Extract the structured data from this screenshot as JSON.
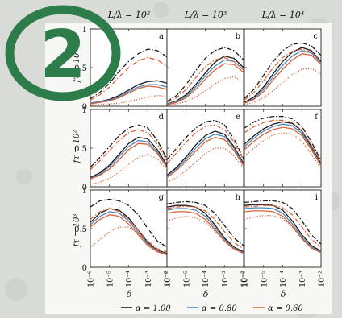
{
  "badge": {
    "number": "2",
    "color": "#2d7d4a"
  },
  "chart_data": {
    "type": "line",
    "panel_grid": {
      "column_titles": [
        "L/λ = 10²",
        "L/λ = 10³",
        "L/λ = 10⁴"
      ],
      "row_labels": [
        "fτ = 10",
        "fτ = 10²",
        "fτ = 10³"
      ],
      "panel_letters": [
        "a",
        "b",
        "c",
        "d",
        "e",
        "f",
        "g",
        "h",
        "i"
      ]
    },
    "xlabel": "δ",
    "x_scale": "log",
    "xlim": [
      1e-06,
      0.01
    ],
    "x_tick_labels": [
      "10⁻⁶",
      "10⁻⁵",
      "10⁻⁴",
      "10⁻³",
      "10⁻²"
    ],
    "ylim": [
      0,
      1
    ],
    "y_tick_labels": [
      "0",
      "0.5",
      "1"
    ],
    "legend": {
      "placement": "bottom",
      "entries": [
        {
          "label": "α = 1.00",
          "color": "#1a1a1a"
        },
        {
          "label": "α = 0.80",
          "color": "#4a86b8"
        },
        {
          "label": "α = 0.60",
          "color": "#d9633a"
        }
      ]
    },
    "line_styles": [
      "solid",
      "dashdot",
      "dotted"
    ],
    "x": [
      -6,
      -5.5,
      -5,
      -4.5,
      -4,
      -3.5,
      -3,
      -2.5,
      -2
    ],
    "panels": [
      {
        "id": "a",
        "series": [
          {
            "color": "#1a1a1a",
            "style": "solid",
            "values": [
              0.04,
              0.06,
              0.09,
              0.14,
              0.21,
              0.28,
              0.32,
              0.33,
              0.3
            ]
          },
          {
            "color": "#4a86b8",
            "style": "solid",
            "values": [
              0.04,
              0.06,
              0.08,
              0.12,
              0.19,
              0.25,
              0.28,
              0.28,
              0.25
            ]
          },
          {
            "color": "#d9633a",
            "style": "solid",
            "values": [
              0.03,
              0.05,
              0.07,
              0.11,
              0.17,
              0.23,
              0.26,
              0.25,
              0.22
            ]
          },
          {
            "color": "#1a1a1a",
            "style": "dashdot",
            "values": [
              0.1,
              0.18,
              0.3,
              0.45,
              0.58,
              0.68,
              0.74,
              0.72,
              0.64
            ]
          },
          {
            "color": "#d9633a",
            "style": "dashdot",
            "values": [
              0.08,
              0.15,
              0.25,
              0.38,
              0.5,
              0.59,
              0.63,
              0.6,
              0.52
            ]
          },
          {
            "color": "#d9633a",
            "style": "dotted",
            "values": [
              0.01,
              0.02,
              0.03,
              0.04,
              0.06,
              0.09,
              0.12,
              0.14,
              0.13
            ]
          }
        ]
      },
      {
        "id": "b",
        "series": [
          {
            "color": "#1a1a1a",
            "style": "solid",
            "values": [
              0.03,
              0.07,
              0.15,
              0.28,
              0.43,
              0.57,
              0.65,
              0.62,
              0.5
            ]
          },
          {
            "color": "#4a86b8",
            "style": "solid",
            "values": [
              0.03,
              0.06,
              0.13,
              0.25,
              0.39,
              0.52,
              0.6,
              0.58,
              0.47
            ]
          },
          {
            "color": "#d9633a",
            "style": "solid",
            "values": [
              0.02,
              0.05,
              0.11,
              0.22,
              0.35,
              0.47,
              0.55,
              0.54,
              0.44
            ]
          },
          {
            "color": "#1a1a1a",
            "style": "dashdot",
            "values": [
              0.06,
              0.14,
              0.28,
              0.46,
              0.62,
              0.72,
              0.76,
              0.72,
              0.6
            ]
          },
          {
            "color": "#d9633a",
            "style": "dashdot",
            "values": [
              0.05,
              0.11,
              0.22,
              0.37,
              0.51,
              0.6,
              0.63,
              0.58,
              0.47
            ]
          },
          {
            "color": "#d9633a",
            "style": "dotted",
            "values": [
              0.01,
              0.03,
              0.06,
              0.12,
              0.2,
              0.29,
              0.36,
              0.38,
              0.32
            ]
          }
        ]
      },
      {
        "id": "c",
        "series": [
          {
            "color": "#1a1a1a",
            "style": "solid",
            "values": [
              0.05,
              0.12,
              0.25,
              0.42,
              0.58,
              0.7,
              0.76,
              0.72,
              0.58
            ]
          },
          {
            "color": "#4a86b8",
            "style": "solid",
            "values": [
              0.04,
              0.1,
              0.22,
              0.38,
              0.53,
              0.65,
              0.72,
              0.69,
              0.56
            ]
          },
          {
            "color": "#d9633a",
            "style": "solid",
            "values": [
              0.04,
              0.09,
              0.19,
              0.34,
              0.48,
              0.6,
              0.68,
              0.66,
              0.54
            ]
          },
          {
            "color": "#1a1a1a",
            "style": "dashdot",
            "values": [
              0.1,
              0.22,
              0.4,
              0.58,
              0.72,
              0.8,
              0.82,
              0.78,
              0.66
            ]
          },
          {
            "color": "#d9633a",
            "style": "dashdot",
            "values": [
              0.08,
              0.18,
              0.33,
              0.5,
              0.63,
              0.71,
              0.74,
              0.7,
              0.58
            ]
          },
          {
            "color": "#d9633a",
            "style": "dotted",
            "values": [
              0.02,
              0.05,
              0.11,
              0.2,
              0.31,
              0.41,
              0.48,
              0.49,
              0.42
            ]
          }
        ]
      },
      {
        "id": "d",
        "series": [
          {
            "color": "#1a1a1a",
            "style": "solid",
            "values": [
              0.12,
              0.18,
              0.28,
              0.42,
              0.56,
              0.64,
              0.62,
              0.48,
              0.28
            ]
          },
          {
            "color": "#4a86b8",
            "style": "solid",
            "values": [
              0.11,
              0.16,
              0.26,
              0.39,
              0.52,
              0.6,
              0.58,
              0.45,
              0.26
            ]
          },
          {
            "color": "#d9633a",
            "style": "solid",
            "values": [
              0.1,
              0.15,
              0.23,
              0.35,
              0.48,
              0.56,
              0.55,
              0.43,
              0.25
            ]
          },
          {
            "color": "#1a1a1a",
            "style": "dashdot",
            "values": [
              0.25,
              0.38,
              0.52,
              0.66,
              0.76,
              0.8,
              0.76,
              0.6,
              0.36
            ]
          },
          {
            "color": "#d9633a",
            "style": "dashdot",
            "values": [
              0.22,
              0.34,
              0.47,
              0.6,
              0.7,
              0.74,
              0.7,
              0.55,
              0.33
            ]
          },
          {
            "color": "#d9633a",
            "style": "dotted",
            "values": [
              0.03,
              0.06,
              0.11,
              0.19,
              0.29,
              0.38,
              0.42,
              0.36,
              0.22
            ]
          }
        ]
      },
      {
        "id": "e",
        "series": [
          {
            "color": "#1a1a1a",
            "style": "solid",
            "values": [
              0.15,
              0.25,
              0.39,
              0.54,
              0.66,
              0.72,
              0.68,
              0.52,
              0.3
            ]
          },
          {
            "color": "#4a86b8",
            "style": "solid",
            "values": [
              0.14,
              0.23,
              0.36,
              0.5,
              0.62,
              0.68,
              0.65,
              0.5,
              0.28
            ]
          },
          {
            "color": "#d9633a",
            "style": "solid",
            "values": [
              0.12,
              0.21,
              0.33,
              0.46,
              0.58,
              0.64,
              0.61,
              0.47,
              0.27
            ]
          },
          {
            "color": "#1a1a1a",
            "style": "dashdot",
            "values": [
              0.35,
              0.5,
              0.64,
              0.76,
              0.84,
              0.86,
              0.8,
              0.62,
              0.36
            ]
          },
          {
            "color": "#d9633a",
            "style": "dashdot",
            "values": [
              0.3,
              0.44,
              0.58,
              0.7,
              0.78,
              0.8,
              0.74,
              0.58,
              0.34
            ]
          },
          {
            "color": "#d9633a",
            "style": "dotted",
            "values": [
              0.06,
              0.12,
              0.21,
              0.32,
              0.43,
              0.5,
              0.5,
              0.4,
              0.24
            ]
          }
        ]
      },
      {
        "id": "f",
        "series": [
          {
            "color": "#1a1a1a",
            "style": "solid",
            "values": [
              0.55,
              0.66,
              0.75,
              0.81,
              0.84,
              0.82,
              0.72,
              0.52,
              0.3
            ]
          },
          {
            "color": "#4a86b8",
            "style": "solid",
            "values": [
              0.52,
              0.63,
              0.72,
              0.78,
              0.81,
              0.79,
              0.69,
              0.5,
              0.28
            ]
          },
          {
            "color": "#d9633a",
            "style": "solid",
            "values": [
              0.48,
              0.59,
              0.68,
              0.74,
              0.77,
              0.75,
              0.66,
              0.48,
              0.27
            ]
          },
          {
            "color": "#1a1a1a",
            "style": "dashdot",
            "values": [
              0.76,
              0.84,
              0.89,
              0.91,
              0.91,
              0.88,
              0.78,
              0.58,
              0.34
            ]
          },
          {
            "color": "#d9633a",
            "style": "dashdot",
            "values": [
              0.7,
              0.78,
              0.83,
              0.86,
              0.86,
              0.83,
              0.73,
              0.54,
              0.32
            ]
          },
          {
            "color": "#d9633a",
            "style": "dotted",
            "values": [
              0.4,
              0.5,
              0.6,
              0.67,
              0.7,
              0.68,
              0.59,
              0.42,
              0.24
            ]
          }
        ]
      },
      {
        "id": "g",
        "series": [
          {
            "color": "#1a1a1a",
            "style": "solid",
            "values": [
              0.58,
              0.7,
              0.76,
              0.74,
              0.64,
              0.48,
              0.32,
              0.22,
              0.18
            ]
          },
          {
            "color": "#4a86b8",
            "style": "solid",
            "values": [
              0.55,
              0.66,
              0.72,
              0.7,
              0.6,
              0.45,
              0.3,
              0.21,
              0.17
            ]
          },
          {
            "color": "#d9633a",
            "style": "solid",
            "values": [
              0.52,
              0.62,
              0.68,
              0.66,
              0.56,
              0.42,
              0.28,
              0.2,
              0.16
            ]
          },
          {
            "color": "#1a1a1a",
            "style": "dashdot",
            "values": [
              0.78,
              0.86,
              0.88,
              0.86,
              0.8,
              0.68,
              0.5,
              0.34,
              0.26
            ]
          },
          {
            "color": "#d9633a",
            "style": "dashdot",
            "values": [
              0.62,
              0.72,
              0.76,
              0.72,
              0.62,
              0.48,
              0.34,
              0.24,
              0.2
            ]
          },
          {
            "color": "#d9633a",
            "style": "dotted",
            "values": [
              0.26,
              0.36,
              0.46,
              0.52,
              0.52,
              0.44,
              0.32,
              0.22,
              0.17
            ]
          }
        ]
      },
      {
        "id": "h",
        "series": [
          {
            "color": "#1a1a1a",
            "style": "solid",
            "values": [
              0.78,
              0.8,
              0.8,
              0.78,
              0.7,
              0.55,
              0.38,
              0.26,
              0.2
            ]
          },
          {
            "color": "#4a86b8",
            "style": "solid",
            "values": [
              0.74,
              0.76,
              0.76,
              0.74,
              0.66,
              0.52,
              0.36,
              0.25,
              0.19
            ]
          },
          {
            "color": "#d9633a",
            "style": "solid",
            "values": [
              0.7,
              0.72,
              0.72,
              0.7,
              0.62,
              0.49,
              0.34,
              0.24,
              0.18
            ]
          },
          {
            "color": "#1a1a1a",
            "style": "dashdot",
            "values": [
              0.82,
              0.84,
              0.85,
              0.84,
              0.8,
              0.7,
              0.54,
              0.38,
              0.28
            ]
          },
          {
            "color": "#d9633a",
            "style": "dashdot",
            "values": [
              0.76,
              0.78,
              0.79,
              0.78,
              0.73,
              0.62,
              0.46,
              0.32,
              0.24
            ]
          },
          {
            "color": "#d9633a",
            "style": "dotted",
            "values": [
              0.6,
              0.64,
              0.66,
              0.64,
              0.58,
              0.47,
              0.33,
              0.23,
              0.18
            ]
          }
        ]
      },
      {
        "id": "i",
        "series": [
          {
            "color": "#1a1a1a",
            "style": "solid",
            "values": [
              0.8,
              0.81,
              0.81,
              0.8,
              0.74,
              0.6,
              0.42,
              0.28,
              0.21
            ]
          },
          {
            "color": "#4a86b8",
            "style": "solid",
            "values": [
              0.76,
              0.77,
              0.77,
              0.76,
              0.7,
              0.56,
              0.39,
              0.26,
              0.2
            ]
          },
          {
            "color": "#d9633a",
            "style": "solid",
            "values": [
              0.72,
              0.73,
              0.73,
              0.72,
              0.66,
              0.53,
              0.37,
              0.25,
              0.19
            ]
          },
          {
            "color": "#1a1a1a",
            "style": "dashdot",
            "values": [
              0.84,
              0.85,
              0.86,
              0.86,
              0.84,
              0.76,
              0.6,
              0.42,
              0.3
            ]
          },
          {
            "color": "#d9633a",
            "style": "dashdot",
            "values": [
              0.78,
              0.79,
              0.8,
              0.8,
              0.77,
              0.68,
              0.52,
              0.36,
              0.26
            ]
          },
          {
            "color": "#d9633a",
            "style": "dotted",
            "values": [
              0.62,
              0.65,
              0.67,
              0.67,
              0.63,
              0.52,
              0.37,
              0.25,
              0.19
            ]
          }
        ]
      }
    ]
  }
}
